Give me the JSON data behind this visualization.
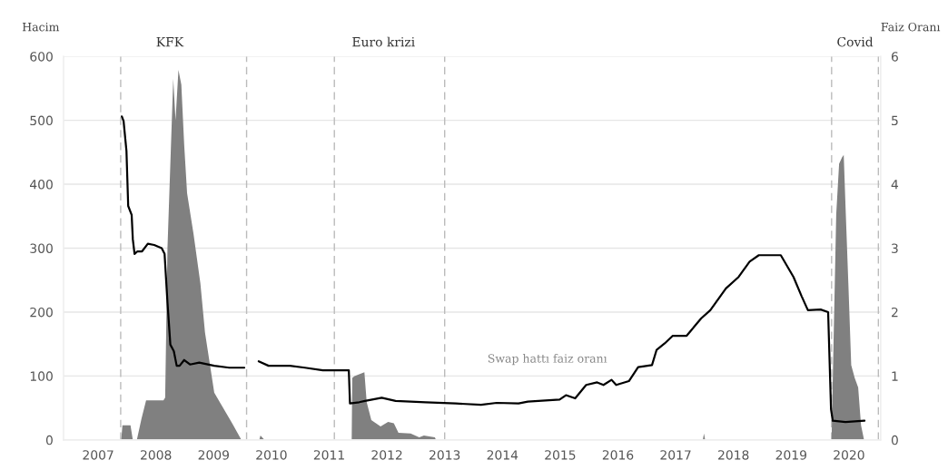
{
  "chart_data": {
    "type": "area",
    "ylabel": "Hacim",
    "y2label": "Faiz Oranı",
    "xlim": [
      2006.9,
      2021.05
    ],
    "xticks": [
      {
        "value": 2007.5,
        "label": "2007"
      },
      {
        "value": 2008.5,
        "label": "2008"
      },
      {
        "value": 2009.5,
        "label": "2009"
      },
      {
        "value": 2010.5,
        "label": "2010"
      },
      {
        "value": 2011.5,
        "label": "2011"
      },
      {
        "value": 2012.5,
        "label": "2012"
      },
      {
        "value": 2013.5,
        "label": "2013"
      },
      {
        "value": 2014.5,
        "label": "2014"
      },
      {
        "value": 2015.5,
        "label": "2015"
      },
      {
        "value": 2016.5,
        "label": "2016"
      },
      {
        "value": 2017.5,
        "label": "2017"
      },
      {
        "value": 2018.5,
        "label": "2018"
      },
      {
        "value": 2019.5,
        "label": "2019"
      },
      {
        "value": 2020.5,
        "label": "2020"
      }
    ],
    "ylim": [
      0,
      600
    ],
    "yticks": [
      0,
      100,
      200,
      300,
      400,
      500,
      600
    ],
    "y2lim": [
      0,
      6
    ],
    "y2ticks": [
      0,
      1,
      2,
      3,
      4,
      5,
      6
    ],
    "grid": "y",
    "series": [
      {
        "color": "#808080",
        "x": [
          2007.9,
          2007.92,
          2008.06,
          2008.1,
          2008.17,
          2008.25,
          2008.33,
          2008.63,
          2008.66,
          2008.7,
          2008.8,
          2008.84,
          2008.89,
          2008.94,
          2008.99,
          2009.04,
          2009.15,
          2009.27,
          2009.35,
          2009.51,
          2009.62,
          2009.82,
          2009.98,
          2010.29,
          2010.31,
          2010.38,
          2011.89,
          2011.9,
          2011.94,
          2012.11,
          2012.15,
          2012.23,
          2012.39,
          2012.52,
          2012.62,
          2012.7,
          2012.91,
          2013.06,
          2013.14,
          2013.33,
          2013.35,
          2017.97,
          2017.99,
          2018.01,
          2020.2,
          2020.21,
          2020.28,
          2020.33,
          2020.38,
          2020.41,
          2020.44,
          2020.49,
          2020.54,
          2020.6,
          2020.66,
          2020.71,
          2020.76
        ],
        "values": [
          0,
          23,
          23,
          0,
          0,
          33,
          62,
          62,
          66,
          300,
          565,
          500,
          579,
          556,
          461,
          386,
          323,
          245,
          168,
          74,
          57,
          26,
          0,
          0,
          7,
          0,
          0,
          97,
          100,
          106,
          59,
          31,
          21,
          28,
          26,
          11,
          10,
          4,
          7,
          4,
          0,
          0,
          10,
          0,
          0,
          50,
          353,
          432,
          442,
          446,
          368,
          245,
          117,
          97,
          82,
          23,
          1
        ]
      },
      {
        "type": "line",
        "axis": "y2",
        "color": "#000000",
        "x": [
          2007.91,
          2007.94,
          2007.99,
          2008.02,
          2008.08,
          2008.1,
          2008.13,
          2008.18,
          2008.26,
          2008.36,
          2008.47,
          2008.6,
          2008.65,
          2008.7,
          2008.75,
          2008.81,
          2008.86,
          2008.91,
          2008.99,
          2009.09,
          2009.25,
          2009.51,
          2009.77,
          2010.03,
          2010.1,
          2010.28,
          2010.45,
          2010.82,
          2011.08,
          2011.39,
          2011.6,
          2011.84,
          2011.86,
          2012.02,
          2012.12,
          2012.41,
          2012.65,
          2013.17,
          2013.69,
          2014.13,
          2014.4,
          2014.78,
          2014.94,
          2015.49,
          2015.6,
          2015.76,
          2015.95,
          2016.14,
          2016.25,
          2016.39,
          2016.47,
          2016.69,
          2016.85,
          2017.09,
          2017.17,
          2017.31,
          2017.45,
          2017.69,
          2017.94,
          2018.1,
          2018.37,
          2018.59,
          2018.78,
          2018.94,
          2019.32,
          2019.54,
          2019.68,
          2019.79,
          2020.01,
          2020.14,
          2020.19,
          2020.22,
          2020.44,
          2020.77
        ],
        "values": [
          5.06,
          4.99,
          4.52,
          3.66,
          3.52,
          3.14,
          2.91,
          2.95,
          2.95,
          3.07,
          3.05,
          3.0,
          2.91,
          2.15,
          1.49,
          1.39,
          1.16,
          1.16,
          1.25,
          1.18,
          1.21,
          1.16,
          1.13,
          1.13,
          null,
          1.23,
          1.16,
          1.16,
          1.13,
          1.09,
          1.09,
          1.09,
          0.57,
          0.59,
          0.61,
          0.66,
          0.61,
          0.59,
          0.57,
          0.55,
          0.58,
          0.57,
          0.6,
          0.63,
          0.7,
          0.65,
          0.86,
          0.9,
          0.86,
          0.94,
          0.86,
          0.92,
          1.14,
          1.17,
          1.41,
          1.51,
          1.63,
          1.63,
          1.9,
          2.03,
          2.37,
          2.55,
          2.79,
          2.89,
          2.89,
          2.55,
          2.25,
          2.03,
          2.04,
          2.0,
          0.48,
          0.3,
          0.28,
          0.3
        ]
      }
    ],
    "ref_lines": [
      {
        "axis": "x",
        "value": 2007.89,
        "label": "KFK",
        "line_style": "dashed"
      },
      {
        "axis": "x",
        "value": 2010.07,
        "label": null,
        "line_style": "dashed"
      },
      {
        "axis": "x",
        "value": 2011.59,
        "label": "Euro krizi",
        "line_style": "dashed"
      },
      {
        "axis": "x",
        "value": 2013.5,
        "label": null,
        "line_style": "dashed"
      },
      {
        "axis": "x",
        "value": 2020.2,
        "label": "Covid",
        "line_style": "dashed"
      },
      {
        "axis": "x",
        "value": 2021.01,
        "label": null,
        "line_style": "dashed"
      }
    ],
    "annotations": [
      "Swap hattı faiz oranı"
    ]
  }
}
